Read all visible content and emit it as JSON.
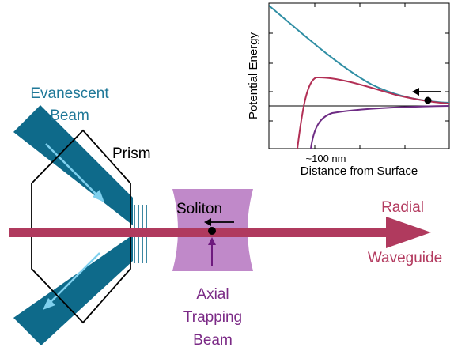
{
  "labels": {
    "evanescent_line1": "Evanescent",
    "evanescent_line2": "Beam",
    "prism": "Prism",
    "soliton": "Soliton",
    "radial": "Radial",
    "waveguide": "Waveguide",
    "axial_line1": "Axial",
    "axial_line2": "Trapping",
    "axial_line3": "Beam"
  },
  "inset": {
    "ylabel": "Potential Energy",
    "xlabel": "Distance from Surface",
    "annotation": "~100 nm"
  },
  "colors": {
    "evanescent_beam": "#0e6a8a",
    "evanescent_arrow": "#7fd0ee",
    "evanescent_text": "#1f7898",
    "radial_beam": "#b03a5e",
    "radial_text": "#b33a5f",
    "trap_beam": "#c089c9",
    "trap_arrow": "#6e1a7e",
    "axial_text": "#7b2a86",
    "curve_teal": "#2f8ea4",
    "curve_red": "#b22f55",
    "curve_purple": "#6e2c84"
  }
}
